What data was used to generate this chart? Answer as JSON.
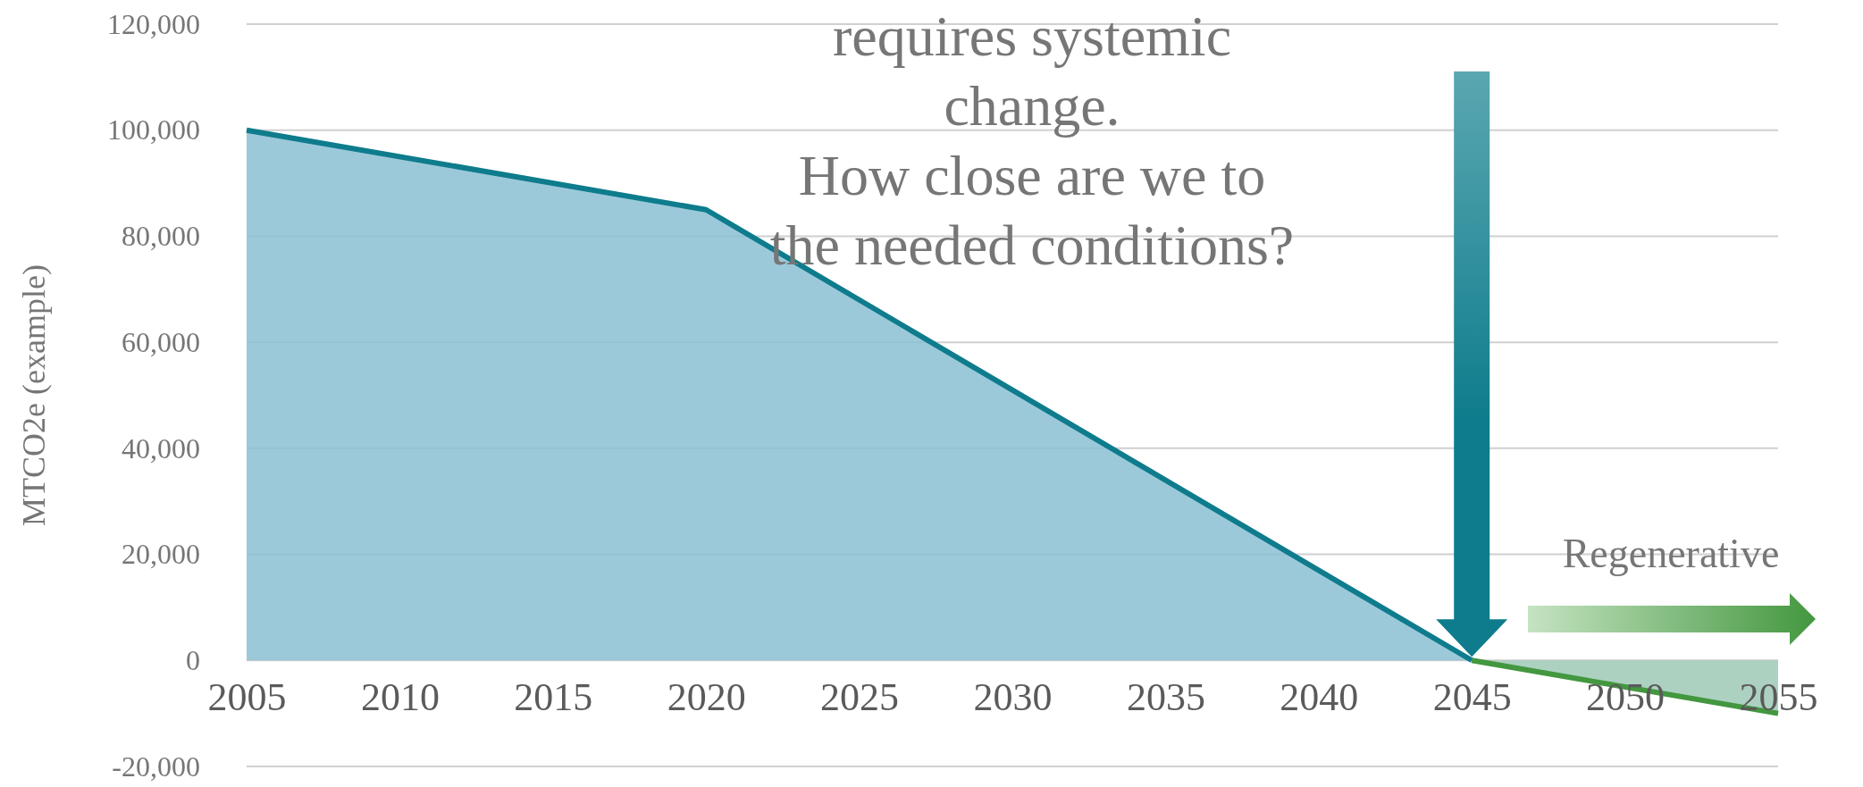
{
  "chart_data": {
    "type": "area",
    "title": "requires systemic change. How close are we to the needed conditions?",
    "ylabel": "MTCO2e (example)",
    "xlim": [
      2005,
      2055
    ],
    "xticks": [
      2005,
      2010,
      2015,
      2020,
      2025,
      2030,
      2035,
      2040,
      2045,
      2050,
      2055
    ],
    "ylim": [
      -20000,
      120000
    ],
    "yticks": [
      {
        "value": -20000,
        "label": "-20,000"
      },
      0,
      {
        "value": 20000,
        "label": "20,000"
      },
      {
        "value": 40000,
        "label": "40,000"
      },
      {
        "value": 60000,
        "label": "60,000"
      },
      {
        "value": 80000,
        "label": "80,000"
      },
      {
        "value": 100000,
        "label": "100,000"
      },
      {
        "value": 120000,
        "label": "120,000"
      }
    ],
    "grid": "y",
    "series": [
      {
        "color": "#0e7c8c",
        "x": [
          2005,
          2020,
          2045
        ],
        "values": [
          100000,
          85000,
          0
        ]
      },
      {
        "color": "#43973f",
        "x": [
          2045,
          2055
        ],
        "values": [
          0,
          -10000
        ]
      }
    ],
    "annotations": [
      "Regenerative"
    ]
  }
}
